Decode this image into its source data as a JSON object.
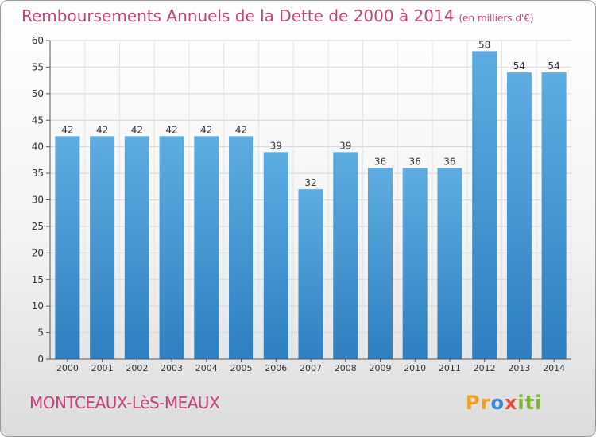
{
  "header": {
    "title": "Remboursements Annuels de la Dette de 2000 à 2014",
    "subtitle": "(en milliers d'€)"
  },
  "footer": {
    "commune": "MONTCEAUX-LèS-MEAUX",
    "logo": "Proxiti"
  },
  "colors": {
    "title": "#c8407a",
    "bar_top": "#5dade2",
    "bar_bottom": "#2e7fc0",
    "grid": "#d6d6d6"
  },
  "chart_data": {
    "type": "bar",
    "title": "Remboursements Annuels de la Dette de 2000 à 2014",
    "xlabel": "",
    "ylabel": "en milliers d'€",
    "categories": [
      "2000",
      "2001",
      "2002",
      "2003",
      "2004",
      "2005",
      "2006",
      "2007",
      "2008",
      "2009",
      "2010",
      "2011",
      "2012",
      "2013",
      "2014"
    ],
    "values": [
      42,
      42,
      42,
      42,
      42,
      42,
      39,
      32,
      39,
      36,
      36,
      36,
      58,
      54,
      54
    ],
    "ylim": [
      0,
      60
    ],
    "yticks": [
      0,
      5,
      10,
      15,
      20,
      25,
      30,
      35,
      40,
      45,
      50,
      55,
      60
    ],
    "grid": true,
    "legend": "none"
  }
}
